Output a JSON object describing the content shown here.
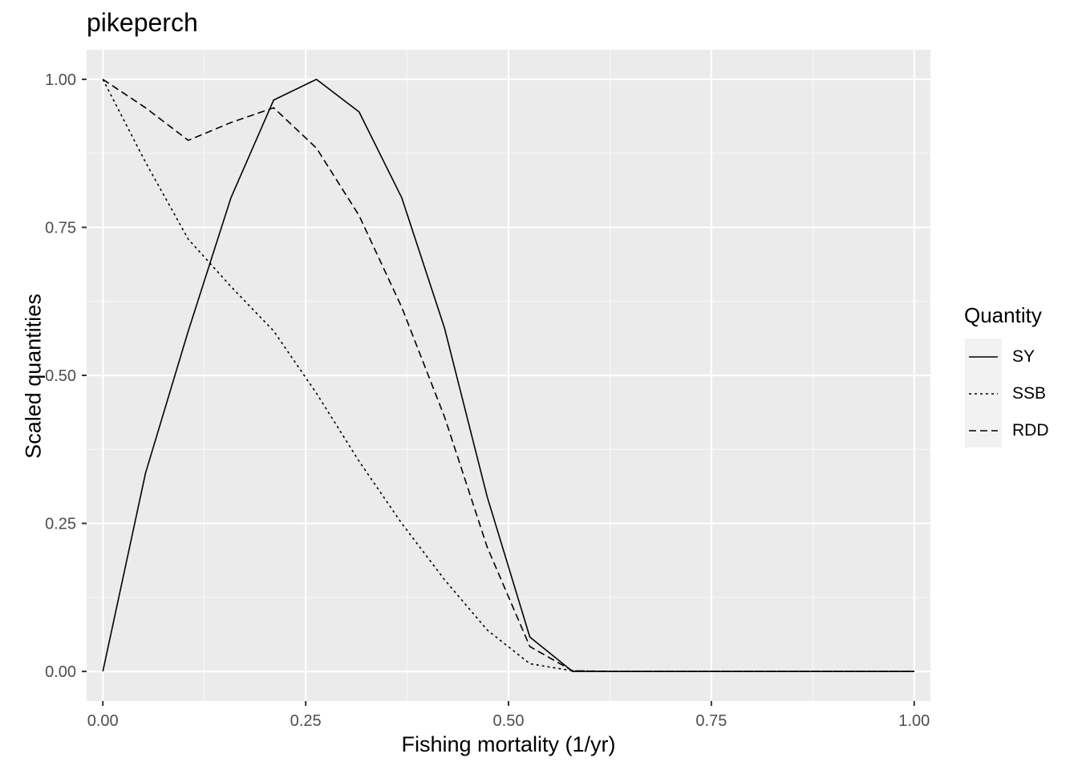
{
  "chart_data": {
    "type": "line",
    "title": "pikeperch",
    "xlabel": "Fishing mortality (1/yr)",
    "ylabel": "Scaled quantities",
    "xlim": [
      -0.02,
      1.02
    ],
    "ylim": [
      -0.05,
      1.05
    ],
    "x_ticks": [
      "0.00",
      "0.25",
      "0.50",
      "0.75",
      "1.00"
    ],
    "y_ticks": [
      "0.00",
      "0.25",
      "0.50",
      "0.75",
      "1.00"
    ],
    "grid": true,
    "legend": {
      "title": "Quantity",
      "position": "right"
    },
    "x": [
      0.0,
      0.0526,
      0.1053,
      0.1579,
      0.2105,
      0.2632,
      0.3158,
      0.3684,
      0.4211,
      0.4737,
      0.5263,
      0.5789,
      0.6316,
      0.6842,
      0.7368,
      0.7895,
      0.8421,
      0.8947,
      0.9474,
      1.0
    ],
    "series": [
      {
        "name": "SY",
        "dash": "solid",
        "values": [
          0.0,
          0.335,
          0.575,
          0.8,
          0.965,
          1.0,
          0.945,
          0.8,
          0.58,
          0.295,
          0.058,
          0.0,
          0.0,
          0.0,
          0.0,
          0.0,
          0.0,
          0.0,
          0.0,
          0.0
        ]
      },
      {
        "name": "SSB",
        "dash": "dotted",
        "values": [
          1.0,
          0.86,
          0.73,
          0.65,
          0.575,
          0.47,
          0.355,
          0.25,
          0.155,
          0.07,
          0.013,
          0.001,
          0.0,
          0.0,
          0.0,
          0.0,
          0.0,
          0.0,
          0.0,
          0.0
        ]
      },
      {
        "name": "RDD",
        "dash": "dashed",
        "values": [
          1.0,
          0.952,
          0.897,
          0.927,
          0.952,
          0.884,
          0.77,
          0.615,
          0.43,
          0.21,
          0.042,
          0.001,
          0.0,
          0.0,
          0.0,
          0.0,
          0.0,
          0.0,
          0.0,
          0.0
        ]
      }
    ]
  }
}
